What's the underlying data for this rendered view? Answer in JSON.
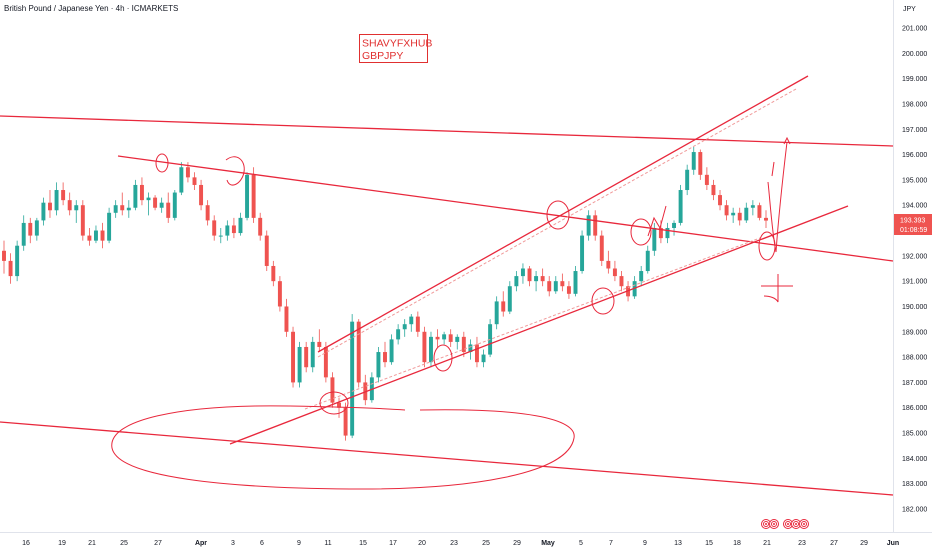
{
  "header": {
    "title": "British Pound / Japanese Yen · 4h · ICMARKETS",
    "currency": "JPY"
  },
  "watermark": {
    "line1": "SHAVYFXHUB",
    "line2": "GBPJPY"
  },
  "price_label": {
    "price": "193.393",
    "countdown": "01:08:59"
  },
  "colors": {
    "up_candle": "#26a69a",
    "down_candle": "#ef5350",
    "trendline": "#e8283c",
    "price_label_bg": "#ef5350"
  },
  "icons": [
    "eye-icon",
    "eye-icon",
    "eye-icon",
    "eye-icon",
    "eye-icon"
  ],
  "chart_data": {
    "type": "candlestick",
    "symbol": "GBPJPY",
    "timeframe": "4h",
    "y_axis": {
      "min": 181.6,
      "max": 201.9,
      "ticks": [
        182.0,
        183.0,
        184.0,
        185.0,
        186.0,
        187.0,
        188.0,
        189.0,
        190.0,
        191.0,
        192.0,
        193.0,
        194.0,
        195.0,
        196.0,
        197.0,
        198.0,
        199.0,
        200.0,
        201.0
      ],
      "tick_labels": [
        "182.000",
        "183.000",
        "184.000",
        "185.000",
        "186.000",
        "187.000",
        "188.000",
        "189.000",
        "190.000",
        "191.000",
        "192.000",
        "193.000",
        "194.000",
        "195.000",
        "196.000",
        "197.000",
        "198.000",
        "199.000",
        "200.000",
        "201.000"
      ]
    },
    "x_axis": {
      "labels": [
        "16",
        "19",
        "21",
        "25",
        "27",
        "Apr",
        "3",
        "6",
        "9",
        "11",
        "15",
        "17",
        "20",
        "23",
        "25",
        "29",
        "May",
        "5",
        "7",
        "9",
        "13",
        "15",
        "18",
        "21",
        "23",
        "27",
        "29",
        "Jun"
      ],
      "positions": [
        26,
        62,
        92,
        124,
        158,
        201,
        233,
        262,
        299,
        328,
        363,
        393,
        422,
        454,
        486,
        517,
        548,
        581,
        611,
        645,
        678,
        709,
        737,
        767,
        802,
        834,
        864,
        893
      ],
      "bold": [
        "Apr",
        "May",
        "Jun"
      ]
    },
    "last_price": 193.393,
    "candles_ohlc": [
      [
        192.2,
        192.6,
        191.3,
        191.8
      ],
      [
        191.8,
        192.1,
        190.9,
        191.2
      ],
      [
        191.2,
        192.6,
        191.0,
        192.4
      ],
      [
        192.4,
        193.6,
        192.2,
        193.3
      ],
      [
        193.3,
        193.5,
        192.5,
        192.8
      ],
      [
        192.8,
        193.5,
        192.6,
        193.4
      ],
      [
        193.4,
        194.3,
        193.2,
        194.1
      ],
      [
        194.1,
        194.6,
        193.5,
        193.8
      ],
      [
        193.8,
        194.9,
        193.6,
        194.6
      ],
      [
        194.6,
        194.9,
        194.0,
        194.2
      ],
      [
        194.2,
        194.5,
        193.6,
        193.8
      ],
      [
        193.8,
        194.2,
        193.3,
        194.0
      ],
      [
        194.0,
        194.2,
        192.6,
        192.8
      ],
      [
        192.8,
        193.1,
        192.4,
        192.6
      ],
      [
        192.6,
        193.2,
        192.5,
        193.0
      ],
      [
        193.0,
        193.3,
        192.3,
        192.6
      ],
      [
        192.6,
        193.9,
        192.5,
        193.7
      ],
      [
        193.7,
        194.2,
        193.5,
        194.0
      ],
      [
        194.0,
        194.5,
        193.6,
        193.8
      ],
      [
        193.8,
        194.2,
        193.5,
        193.9
      ],
      [
        193.9,
        195.0,
        193.8,
        194.8
      ],
      [
        194.8,
        195.1,
        194.0,
        194.2
      ],
      [
        194.2,
        194.5,
        193.6,
        194.3
      ],
      [
        194.3,
        194.4,
        193.8,
        193.9
      ],
      [
        193.9,
        194.3,
        193.7,
        194.1
      ],
      [
        194.1,
        194.5,
        193.3,
        193.5
      ],
      [
        193.5,
        194.6,
        193.4,
        194.5
      ],
      [
        194.5,
        195.7,
        194.4,
        195.5
      ],
      [
        195.5,
        195.7,
        194.9,
        195.1
      ],
      [
        195.1,
        195.3,
        194.6,
        194.8
      ],
      [
        194.8,
        195.0,
        193.8,
        194.0
      ],
      [
        194.0,
        194.2,
        193.2,
        193.4
      ],
      [
        193.4,
        193.6,
        192.6,
        192.8
      ],
      [
        192.8,
        193.1,
        192.5,
        192.8
      ],
      [
        192.8,
        193.4,
        192.6,
        193.2
      ],
      [
        193.2,
        193.5,
        192.7,
        192.9
      ],
      [
        192.9,
        193.7,
        192.8,
        193.5
      ],
      [
        193.5,
        195.3,
        193.4,
        195.2
      ],
      [
        195.2,
        195.5,
        193.3,
        193.5
      ],
      [
        193.5,
        193.7,
        192.6,
        192.8
      ],
      [
        192.8,
        193.0,
        191.4,
        191.6
      ],
      [
        191.6,
        191.8,
        190.8,
        191.0
      ],
      [
        191.0,
        191.2,
        189.8,
        190.0
      ],
      [
        190.0,
        190.3,
        188.8,
        189.0
      ],
      [
        189.0,
        189.2,
        186.8,
        187.0
      ],
      [
        187.0,
        188.6,
        186.8,
        188.4
      ],
      [
        188.4,
        188.6,
        187.4,
        187.6
      ],
      [
        187.6,
        188.8,
        187.4,
        188.6
      ],
      [
        188.6,
        189.1,
        188.2,
        188.4
      ],
      [
        188.4,
        188.6,
        187.0,
        187.2
      ],
      [
        187.2,
        187.4,
        186.0,
        186.2
      ],
      [
        186.2,
        186.4,
        185.6,
        186.0
      ],
      [
        186.0,
        186.2,
        184.7,
        184.9
      ],
      [
        184.9,
        189.7,
        184.8,
        189.4
      ],
      [
        189.4,
        189.5,
        186.8,
        187.0
      ],
      [
        187.0,
        187.3,
        186.1,
        186.3
      ],
      [
        186.3,
        187.4,
        186.2,
        187.2
      ],
      [
        187.2,
        188.4,
        187.0,
        188.2
      ],
      [
        188.2,
        188.6,
        187.6,
        187.8
      ],
      [
        187.8,
        188.9,
        187.7,
        188.7
      ],
      [
        188.7,
        189.3,
        188.5,
        189.1
      ],
      [
        189.1,
        189.5,
        188.8,
        189.3
      ],
      [
        189.3,
        189.7,
        189.0,
        189.6
      ],
      [
        189.6,
        189.8,
        188.8,
        189.0
      ],
      [
        189.0,
        189.2,
        187.6,
        187.8
      ],
      [
        187.8,
        189.0,
        187.6,
        188.8
      ],
      [
        188.8,
        189.1,
        188.4,
        188.7
      ],
      [
        188.7,
        189.0,
        188.5,
        188.9
      ],
      [
        188.9,
        189.1,
        188.4,
        188.6
      ],
      [
        188.6,
        188.9,
        188.3,
        188.8
      ],
      [
        188.8,
        189.0,
        188.0,
        188.2
      ],
      [
        188.2,
        188.7,
        187.9,
        188.5
      ],
      [
        188.5,
        188.8,
        187.6,
        187.8
      ],
      [
        187.8,
        188.3,
        187.6,
        188.1
      ],
      [
        188.1,
        189.5,
        188.0,
        189.3
      ],
      [
        189.3,
        190.4,
        189.1,
        190.2
      ],
      [
        190.2,
        190.6,
        189.6,
        189.8
      ],
      [
        189.8,
        191.0,
        189.7,
        190.8
      ],
      [
        190.8,
        191.4,
        190.6,
        191.2
      ],
      [
        191.2,
        191.7,
        190.9,
        191.5
      ],
      [
        191.5,
        191.6,
        190.8,
        191.0
      ],
      [
        191.0,
        191.4,
        190.6,
        191.2
      ],
      [
        191.2,
        191.5,
        190.8,
        191.0
      ],
      [
        191.0,
        191.2,
        190.4,
        190.6
      ],
      [
        190.6,
        191.2,
        190.5,
        191.0
      ],
      [
        191.0,
        191.3,
        190.6,
        190.8
      ],
      [
        190.8,
        191.0,
        190.3,
        190.5
      ],
      [
        190.5,
        191.6,
        190.4,
        191.4
      ],
      [
        191.4,
        193.0,
        191.3,
        192.8
      ],
      [
        192.8,
        193.8,
        192.6,
        193.6
      ],
      [
        193.6,
        193.8,
        192.6,
        192.8
      ],
      [
        192.8,
        193.0,
        191.6,
        191.8
      ],
      [
        191.8,
        192.2,
        191.3,
        191.5
      ],
      [
        191.5,
        191.8,
        191.0,
        191.2
      ],
      [
        191.2,
        191.4,
        190.6,
        190.8
      ],
      [
        190.8,
        191.0,
        190.2,
        190.4
      ],
      [
        190.4,
        191.2,
        190.3,
        191.0
      ],
      [
        191.0,
        191.6,
        190.8,
        191.4
      ],
      [
        191.4,
        192.4,
        191.3,
        192.2
      ],
      [
        192.2,
        193.3,
        192.0,
        193.1
      ],
      [
        193.1,
        193.4,
        192.5,
        192.7
      ],
      [
        192.7,
        193.3,
        192.5,
        193.1
      ],
      [
        193.1,
        193.4,
        192.8,
        193.3
      ],
      [
        193.3,
        194.8,
        193.2,
        194.6
      ],
      [
        194.6,
        195.6,
        194.4,
        195.4
      ],
      [
        195.4,
        196.3,
        195.2,
        196.1
      ],
      [
        196.1,
        196.2,
        195.0,
        195.2
      ],
      [
        195.2,
        195.5,
        194.6,
        194.8
      ],
      [
        194.8,
        195.0,
        194.2,
        194.4
      ],
      [
        194.4,
        194.6,
        193.8,
        194.0
      ],
      [
        194.0,
        194.2,
        193.4,
        193.6
      ],
      [
        193.6,
        193.9,
        193.3,
        193.7
      ],
      [
        193.7,
        193.9,
        193.2,
        193.4
      ],
      [
        193.4,
        194.1,
        193.3,
        193.9
      ],
      [
        193.9,
        194.2,
        193.6,
        194.0
      ],
      [
        194.0,
        194.1,
        193.4,
        193.5
      ],
      [
        193.5,
        193.8,
        193.1,
        193.393
      ]
    ],
    "candle_x_range": [
      4,
      766
    ]
  }
}
